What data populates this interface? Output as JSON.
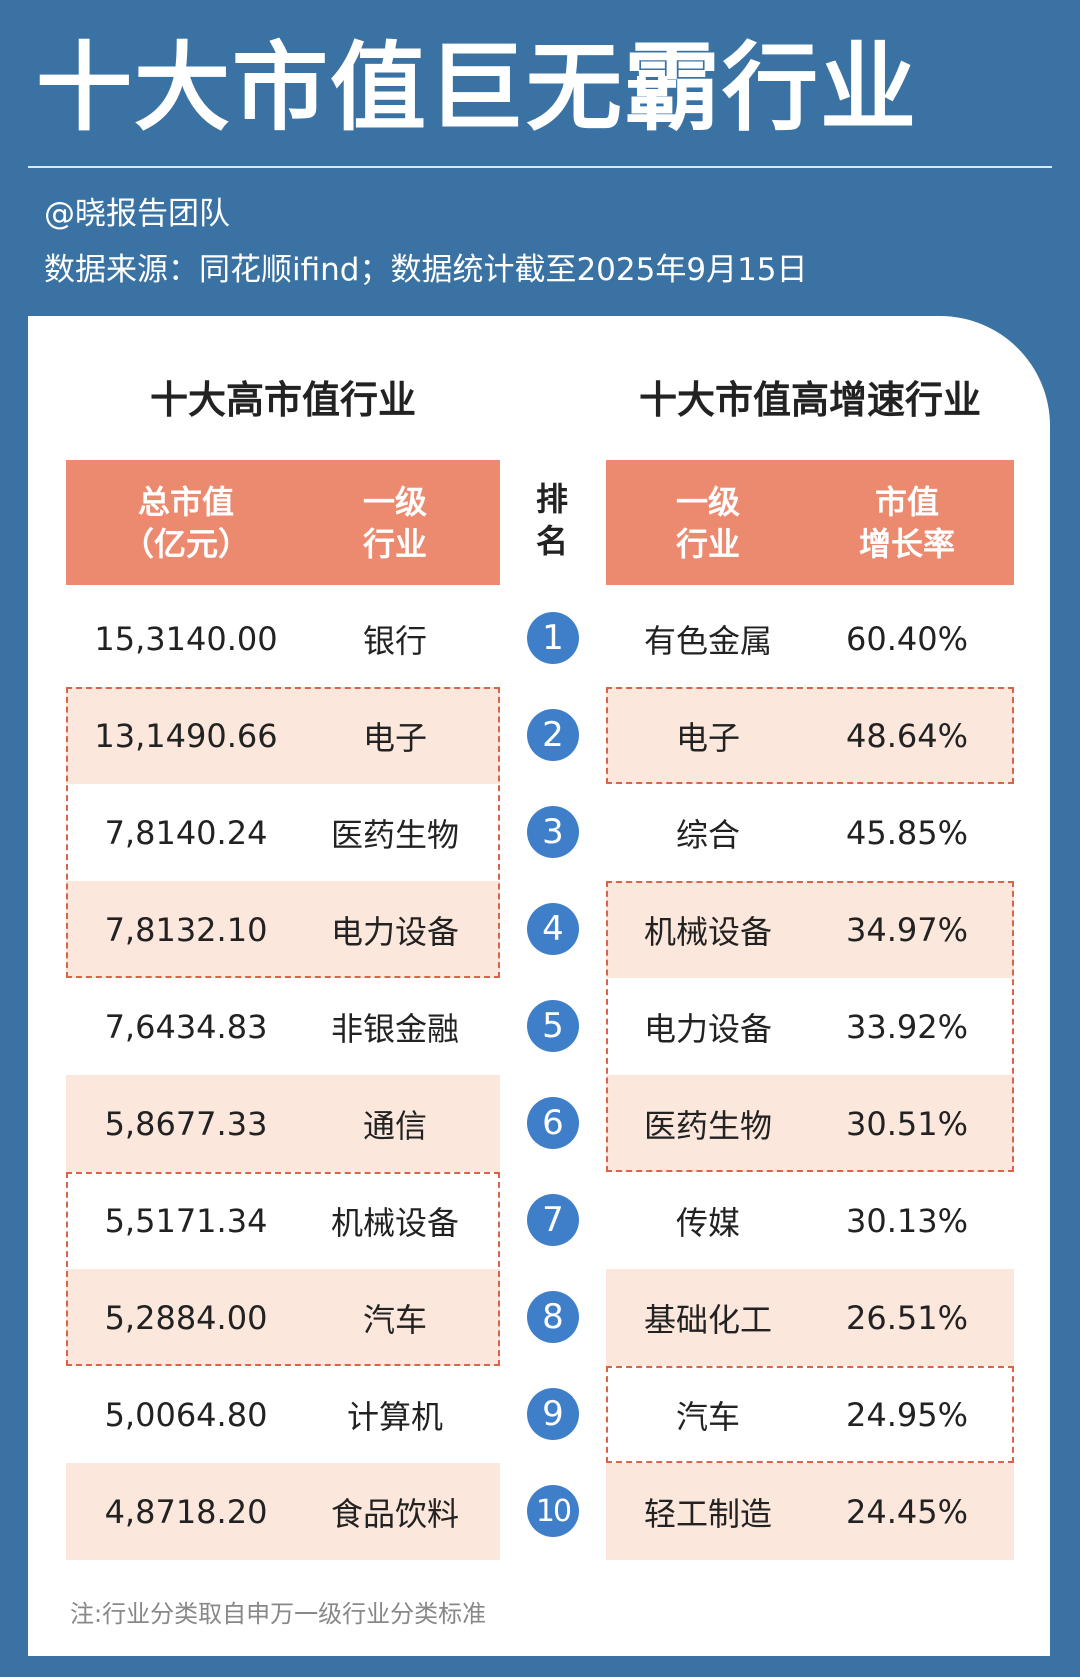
{
  "title": "十大市值巨无霸行业",
  "author": "@晓报告团队",
  "source": "数据来源：同花顺ifind；数据统计截至2025年9月15日",
  "left_table": {
    "title": "十大高市值行业",
    "col1": "总市值\n（亿元）",
    "col2": "一级\n行业",
    "rows": [
      {
        "value": "15,3140.00",
        "industry": "银行"
      },
      {
        "value": "13,1490.66",
        "industry": "电子"
      },
      {
        "value": "7,8140.24",
        "industry": "医药生物"
      },
      {
        "value": "7,8132.10",
        "industry": "电力设备"
      },
      {
        "value": "7,6434.83",
        "industry": "非银金融"
      },
      {
        "value": "5,8677.33",
        "industry": "通信"
      },
      {
        "value": "5,5171.34",
        "industry": "机械设备"
      },
      {
        "value": "5,2884.00",
        "industry": "汽车"
      },
      {
        "value": "5,0064.80",
        "industry": "计算机"
      },
      {
        "value": "4,8718.20",
        "industry": "食品饮料"
      }
    ]
  },
  "rank_header": "排\n名",
  "ranks": [
    "1",
    "2",
    "3",
    "4",
    "5",
    "6",
    "7",
    "8",
    "9",
    "10"
  ],
  "right_table": {
    "title": "十大市值高增速行业",
    "col1": "一级\n行业",
    "col2": "市值\n增长率",
    "rows": [
      {
        "industry": "有色金属",
        "growth": "60.40%"
      },
      {
        "industry": "电子",
        "growth": "48.64%"
      },
      {
        "industry": "综合",
        "growth": "45.85%"
      },
      {
        "industry": "机械设备",
        "growth": "34.97%"
      },
      {
        "industry": "电力设备",
        "growth": "33.92%"
      },
      {
        "industry": "医药生物",
        "growth": "30.51%"
      },
      {
        "industry": "传媒",
        "growth": "30.13%"
      },
      {
        "industry": "基础化工",
        "growth": "26.51%"
      },
      {
        "industry": "汽车",
        "growth": "24.95%"
      },
      {
        "industry": "轻工制造",
        "growth": "24.45%"
      }
    ]
  },
  "note": "注:行业分类取自申万一级行业分类标准",
  "colors": {
    "background": "#3a73a3",
    "header": "#ec8a70",
    "row_shade": "#fbe7dc",
    "highlight_border": "#d9644a",
    "rank_circle": "#3f7fc9"
  }
}
